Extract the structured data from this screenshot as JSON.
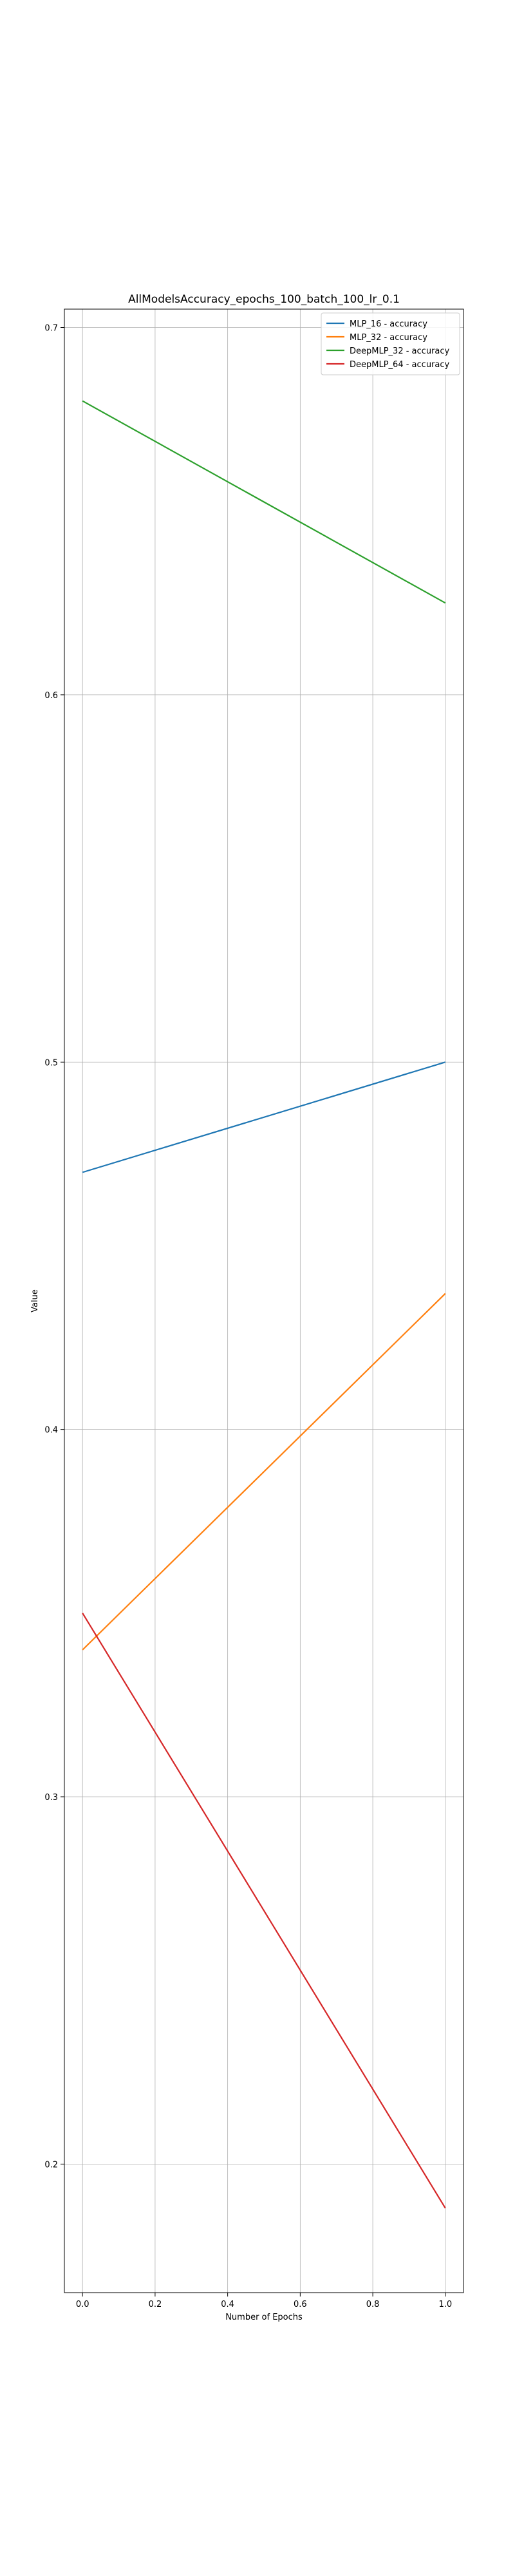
{
  "chart_data": {
    "type": "line",
    "title": "AllModelsAccuracy_epochs_100_batch_100_lr_0.1",
    "xlabel": "Number of Epochs",
    "ylabel": "Value",
    "x": [
      0.0,
      1.0
    ],
    "xlim": [
      -0.05,
      1.05
    ],
    "ylim": [
      0.165,
      0.705
    ],
    "xticks": [
      0.0,
      0.2,
      0.4,
      0.6,
      0.8,
      1.0
    ],
    "xtick_labels": [
      "0.0",
      "0.2",
      "0.4",
      "0.6",
      "0.8",
      "1.0"
    ],
    "yticks": [
      0.2,
      0.3,
      0.4,
      0.5,
      0.6,
      0.7
    ],
    "ytick_labels": [
      "0.2",
      "0.3",
      "0.4",
      "0.5",
      "0.6",
      "0.7"
    ],
    "grid": true,
    "legend_position": "top-right",
    "series": [
      {
        "name": "MLP_16 - accuracy",
        "color": "#1f77b4",
        "values": [
          0.47,
          0.5
        ]
      },
      {
        "name": "MLP_32 - accuracy",
        "color": "#ff7f0e",
        "values": [
          0.34,
          0.437
        ]
      },
      {
        "name": "DeepMLP_32 - accuracy",
        "color": "#2ca02c",
        "values": [
          0.68,
          0.625
        ]
      },
      {
        "name": "DeepMLP_64 - accuracy",
        "color": "#d62728",
        "values": [
          0.35,
          0.188
        ]
      }
    ]
  }
}
